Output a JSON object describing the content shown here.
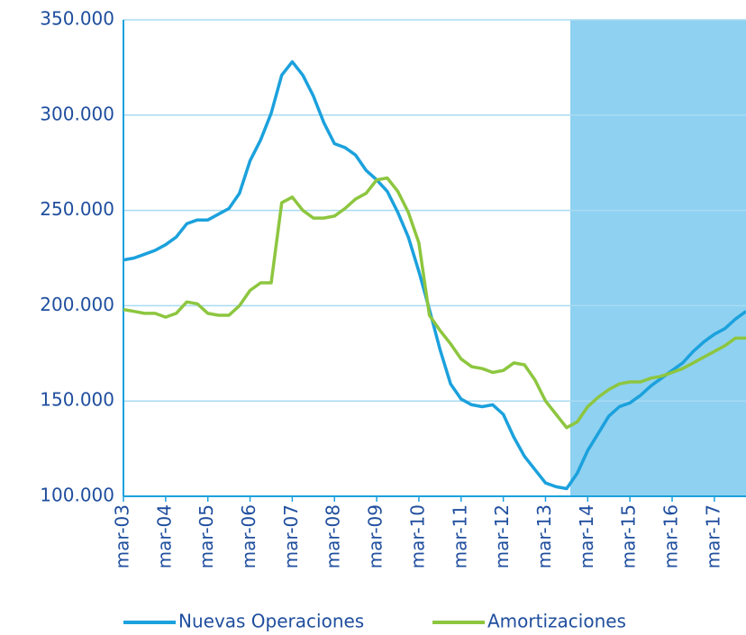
{
  "chart_data": {
    "type": "line",
    "categories": [
      "mar-03",
      null,
      null,
      null,
      "mar-04",
      null,
      null,
      null,
      "mar-05",
      null,
      null,
      null,
      "mar-06",
      null,
      null,
      null,
      "mar-07",
      null,
      null,
      null,
      "mar-08",
      null,
      null,
      null,
      "mar-09",
      null,
      null,
      null,
      "mar-10",
      null,
      null,
      null,
      "mar-11",
      null,
      null,
      null,
      "mar-12",
      null,
      null,
      null,
      "mar-13",
      null,
      null,
      null,
      "mar-14",
      null,
      null,
      null,
      "mar-15",
      null,
      null,
      null,
      "mar-16",
      null,
      null,
      null,
      "mar-17",
      null,
      null,
      null
    ],
    "series": [
      {
        "name": "Nuevas Operaciones",
        "color": "#1ba1dd",
        "values": [
          224000,
          225000,
          227000,
          229000,
          232000,
          236000,
          243000,
          245000,
          245000,
          248000,
          251000,
          259000,
          276000,
          287000,
          301000,
          321000,
          328000,
          321000,
          310000,
          296000,
          285000,
          283000,
          279000,
          271000,
          266000,
          260000,
          249000,
          236000,
          218000,
          198000,
          177000,
          159000,
          151000,
          148000,
          147000,
          148000,
          143000,
          131000,
          121000,
          114000,
          107000,
          105000,
          104000,
          112000,
          124000,
          133000,
          142000,
          147000,
          149000,
          153000,
          158000,
          162000,
          166000,
          170000,
          176000,
          181000,
          185000,
          188000,
          193000,
          197000
        ]
      },
      {
        "name": "Amortizaciones",
        "color": "#8dc63f",
        "values": [
          198000,
          197000,
          196000,
          196000,
          194000,
          196000,
          202000,
          201000,
          196000,
          195000,
          195000,
          200000,
          208000,
          212000,
          212000,
          254000,
          257000,
          250000,
          246000,
          246000,
          247000,
          251000,
          256000,
          259000,
          266000,
          267000,
          260000,
          249000,
          233000,
          195000,
          187000,
          180000,
          172000,
          168000,
          167000,
          165000,
          166000,
          170000,
          169000,
          161000,
          150000,
          143000,
          136000,
          139000,
          147000,
          152000,
          156000,
          159000,
          160000,
          160000,
          162000,
          163000,
          165000,
          167000,
          170000,
          173000,
          176000,
          179000,
          183000,
          183000
        ]
      }
    ],
    "ylim": [
      100000,
      350000
    ],
    "yticks": [
      {
        "value": 100000,
        "label": "100.000"
      },
      {
        "value": 150000,
        "label": "150.000"
      },
      {
        "value": 200000,
        "label": "200.000"
      },
      {
        "value": 250000,
        "label": "250.000"
      },
      {
        "value": 300000,
        "label": "300.000"
      },
      {
        "value": 350000,
        "label": "350.000"
      }
    ],
    "grid": true
  }
}
